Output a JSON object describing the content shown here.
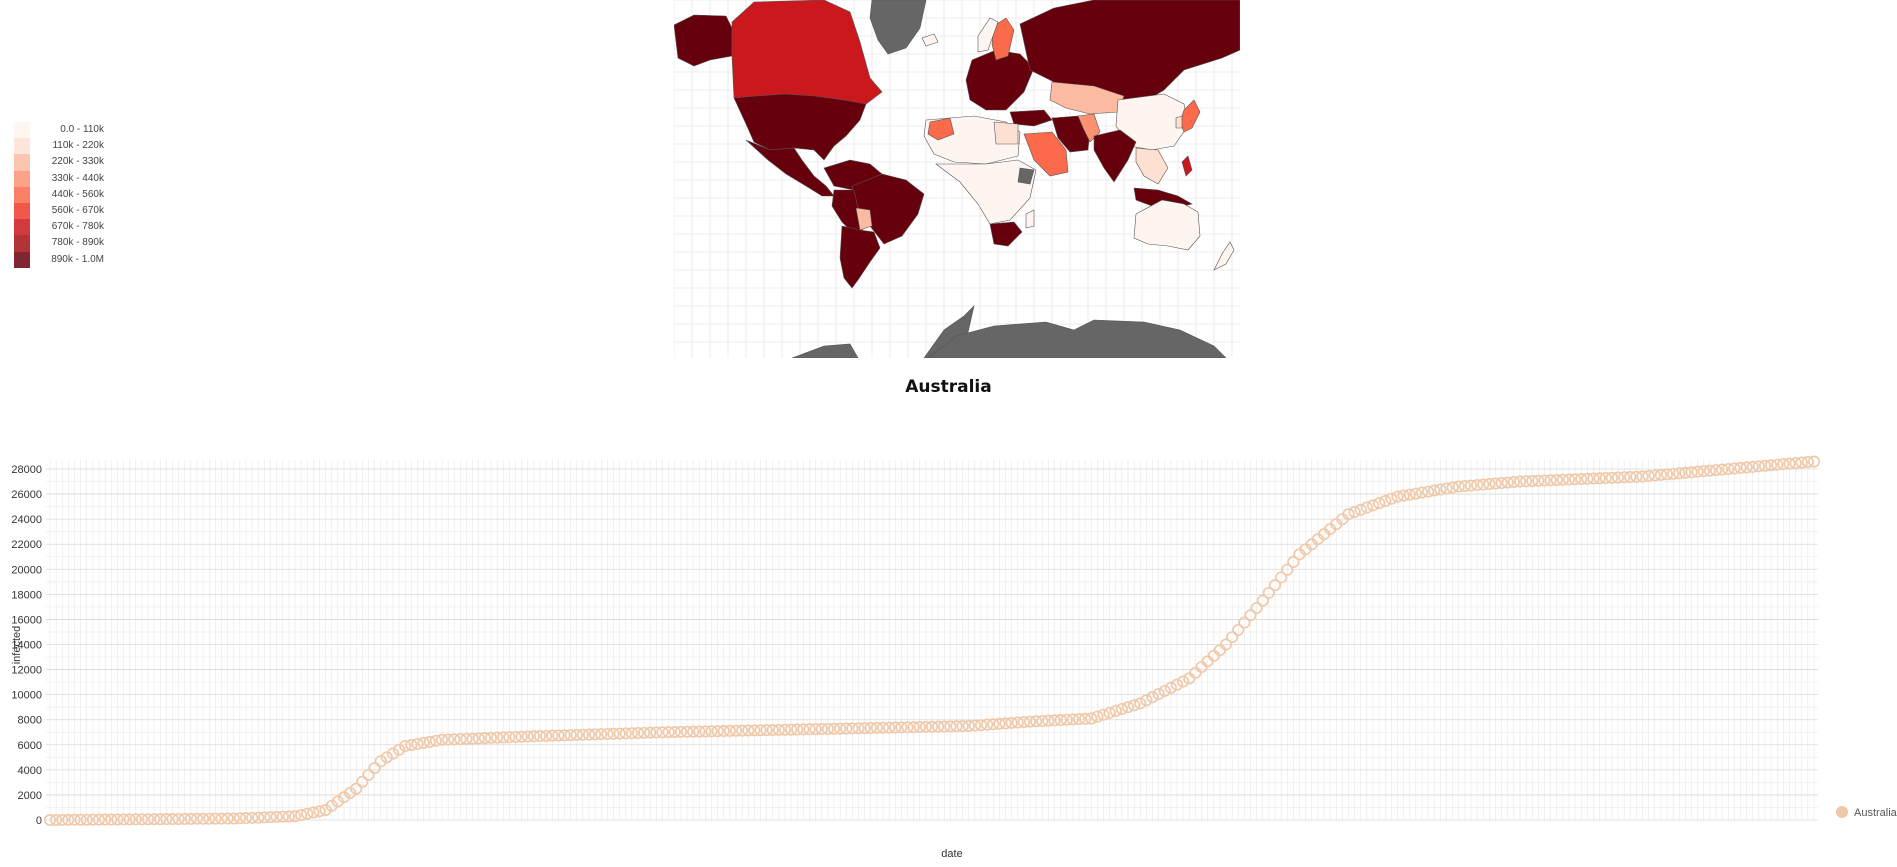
{
  "legend": {
    "items": [
      {
        "label": "0.0 - 110k",
        "color": "#fff5f0"
      },
      {
        "label": "110k - 220k",
        "color": "#fee0d2"
      },
      {
        "label": "220k - 330k",
        "color": "#fcbba1"
      },
      {
        "label": "330k - 440k",
        "color": "#fc9272"
      },
      {
        "label": "440k - 560k",
        "color": "#fb6a4a"
      },
      {
        "label": "560k - 670k",
        "color": "#ef3b2c"
      },
      {
        "label": "670k - 780k",
        "color": "#cb181d"
      },
      {
        "label": "780k - 890k",
        "color": "#a50f15"
      },
      {
        "label": "890k - 1.0M",
        "color": "#67000d"
      }
    ]
  },
  "map": {
    "no_data_color": "#666666",
    "ocean_grid": true
  },
  "chart_data": {
    "type": "scatter",
    "title": "Australia",
    "xlabel": "date",
    "ylabel": "infected",
    "ylim": [
      0,
      28000
    ],
    "yticks": [
      0,
      2000,
      4000,
      6000,
      8000,
      10000,
      12000,
      14000,
      16000,
      18000,
      20000,
      22000,
      24000,
      26000,
      28000
    ],
    "grid": true,
    "legend_position": "right",
    "x_points_count": 289,
    "series": [
      {
        "name": "Australia",
        "color": "#f0c8a8",
        "anchor_index": [
          0,
          30,
          40,
          45,
          50,
          54,
          58,
          64,
          80,
          100,
          130,
          150,
          160,
          170,
          178,
          186,
          192,
          198,
          204,
          212,
          220,
          230,
          240,
          260,
          288
        ],
        "anchor_values": [
          0,
          120,
          300,
          800,
          2500,
          4700,
          5900,
          6400,
          6700,
          7000,
          7300,
          7500,
          7850,
          8100,
          9300,
          11300,
          14000,
          17500,
          21200,
          24400,
          25800,
          26600,
          27000,
          27400,
          28600
        ]
      }
    ]
  }
}
